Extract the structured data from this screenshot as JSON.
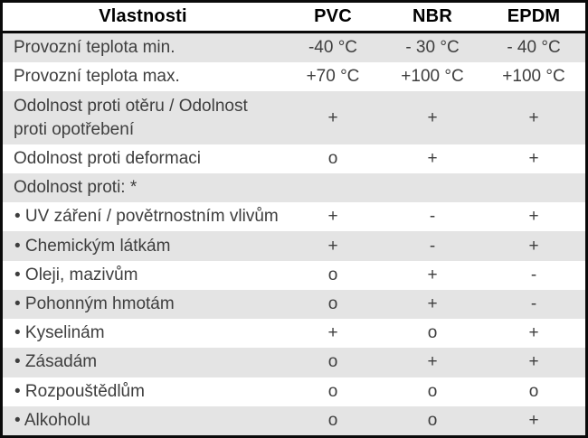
{
  "colors": {
    "row_stripe": "#e4e4e4",
    "border": "#0a0a0a",
    "header_text": "#000000",
    "body_text": "#3e3e3e"
  },
  "table": {
    "header": {
      "property": "Vlastnosti",
      "columns": [
        "PVC",
        "NBR",
        "EPDM"
      ]
    },
    "rows": [
      {
        "label": "Provozní teplota min.",
        "values": [
          "-40 °C",
          "- 30 °C",
          "- 40 °C"
        ]
      },
      {
        "label": "Provozní teplota max.",
        "values": [
          "+70 °C",
          "+100 °C",
          "+100 °C"
        ]
      },
      {
        "label": "Odolnost proti otěru / Odolnost proti opotřebení",
        "values": [
          "+",
          "+",
          "+"
        ]
      },
      {
        "label": "Odolnost proti deformaci",
        "values": [
          "o",
          "+",
          "+"
        ]
      },
      {
        "label": "Odolnost proti: *",
        "values": [
          "",
          "",
          ""
        ]
      },
      {
        "label": "• UV záření / povětrnostním vlivům",
        "values": [
          "+",
          "-",
          "+"
        ]
      },
      {
        "label": "• Chemickým látkám",
        "values": [
          "+",
          "-",
          "+"
        ]
      },
      {
        "label": "• Oleji, mazivům",
        "values": [
          "o",
          "+",
          "-"
        ]
      },
      {
        "label": "• Pohonným hmotám",
        "values": [
          "o",
          "+",
          "-"
        ]
      },
      {
        "label": "• Kyselinám",
        "values": [
          "+",
          "o",
          "+"
        ]
      },
      {
        "label": "• Zásadám",
        "values": [
          "o",
          "+",
          "+"
        ]
      },
      {
        "label": "• Rozpouštědlům",
        "values": [
          "o",
          "o",
          "o"
        ]
      },
      {
        "label": "• Alkoholu",
        "values": [
          "o",
          "o",
          "+"
        ]
      }
    ]
  }
}
